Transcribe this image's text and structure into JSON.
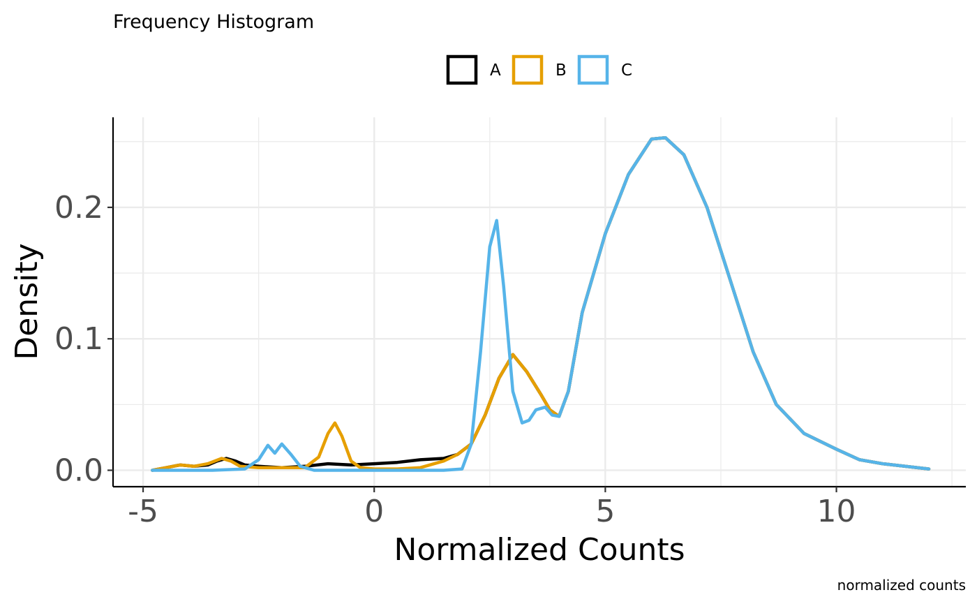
{
  "chart_data": {
    "type": "line",
    "title": "Frequency Histogram",
    "xlabel": "Normalized Counts",
    "ylabel": "Density",
    "caption": "normalized counts",
    "xlim": [
      -5.65,
      12.8
    ],
    "ylim": [
      -0.0125,
      0.2685
    ],
    "x_ticks": [
      -5,
      0,
      5,
      10
    ],
    "x_tick_labels": [
      "-5",
      "0",
      "5",
      "10"
    ],
    "y_ticks": [
      0.0,
      0.1,
      0.2
    ],
    "y_tick_labels": [
      "0.0",
      "0.1",
      "0.2"
    ],
    "x_minor_grid": [
      -2.5,
      2.5,
      7.5,
      12.5
    ],
    "y_minor_grid": [
      0.05,
      0.15,
      0.25
    ],
    "grid": true,
    "legend_position": "top",
    "series": [
      {
        "name": "A",
        "color": "#000000",
        "points": [
          [
            -4.8,
            0.0
          ],
          [
            -4.5,
            0.002
          ],
          [
            -4.2,
            0.004
          ],
          [
            -3.9,
            0.003
          ],
          [
            -3.6,
            0.004
          ],
          [
            -3.4,
            0.007
          ],
          [
            -3.2,
            0.009
          ],
          [
            -3.0,
            0.007
          ],
          [
            -2.8,
            0.004
          ],
          [
            -2.5,
            0.003
          ],
          [
            -2.0,
            0.002
          ],
          [
            -1.5,
            0.003
          ],
          [
            -1.0,
            0.005
          ],
          [
            -0.5,
            0.004
          ],
          [
            0.0,
            0.005
          ],
          [
            0.5,
            0.006
          ],
          [
            1.0,
            0.008
          ],
          [
            1.5,
            0.009
          ],
          [
            1.8,
            0.012
          ],
          [
            2.1,
            0.02
          ],
          [
            2.4,
            0.042
          ],
          [
            2.7,
            0.07
          ],
          [
            3.0,
            0.088
          ],
          [
            3.3,
            0.075
          ],
          [
            3.6,
            0.058
          ],
          [
            3.8,
            0.046
          ],
          [
            4.0,
            0.041
          ],
          [
            4.2,
            0.06
          ],
          [
            4.5,
            0.12
          ],
          [
            5.0,
            0.18
          ],
          [
            5.5,
            0.225
          ],
          [
            6.0,
            0.252
          ],
          [
            6.3,
            0.253
          ],
          [
            6.7,
            0.24
          ],
          [
            7.2,
            0.2
          ],
          [
            7.7,
            0.145
          ],
          [
            8.2,
            0.09
          ],
          [
            8.7,
            0.05
          ],
          [
            9.3,
            0.028
          ],
          [
            10.0,
            0.016
          ],
          [
            10.5,
            0.008
          ],
          [
            11.0,
            0.005
          ],
          [
            12.0,
            0.001
          ]
        ]
      },
      {
        "name": "B",
        "color": "#E69F00",
        "points": [
          [
            -4.8,
            0.0
          ],
          [
            -4.5,
            0.002
          ],
          [
            -4.2,
            0.004
          ],
          [
            -3.9,
            0.003
          ],
          [
            -3.6,
            0.005
          ],
          [
            -3.3,
            0.009
          ],
          [
            -3.1,
            0.007
          ],
          [
            -2.9,
            0.003
          ],
          [
            -2.5,
            0.002
          ],
          [
            -2.0,
            0.002
          ],
          [
            -1.5,
            0.002
          ],
          [
            -1.2,
            0.01
          ],
          [
            -1.0,
            0.028
          ],
          [
            -0.85,
            0.036
          ],
          [
            -0.7,
            0.026
          ],
          [
            -0.5,
            0.007
          ],
          [
            -0.3,
            0.002
          ],
          [
            0.0,
            0.001
          ],
          [
            0.5,
            0.001
          ],
          [
            1.0,
            0.002
          ],
          [
            1.5,
            0.007
          ],
          [
            1.8,
            0.012
          ],
          [
            2.1,
            0.02
          ],
          [
            2.4,
            0.042
          ],
          [
            2.7,
            0.07
          ],
          [
            3.0,
            0.088
          ],
          [
            3.3,
            0.075
          ],
          [
            3.6,
            0.058
          ],
          [
            3.8,
            0.046
          ],
          [
            4.0,
            0.041
          ],
          [
            4.2,
            0.06
          ],
          [
            4.5,
            0.12
          ],
          [
            5.0,
            0.18
          ],
          [
            5.5,
            0.225
          ],
          [
            6.0,
            0.252
          ],
          [
            6.3,
            0.253
          ],
          [
            6.7,
            0.24
          ],
          [
            7.2,
            0.2
          ],
          [
            7.7,
            0.145
          ],
          [
            8.2,
            0.09
          ],
          [
            8.7,
            0.05
          ],
          [
            9.3,
            0.028
          ],
          [
            10.0,
            0.016
          ],
          [
            10.5,
            0.008
          ],
          [
            11.0,
            0.005
          ],
          [
            12.0,
            0.001
          ]
        ]
      },
      {
        "name": "C",
        "color": "#56B4E9",
        "points": [
          [
            -4.8,
            0.0
          ],
          [
            -3.5,
            0.0
          ],
          [
            -2.8,
            0.001
          ],
          [
            -2.5,
            0.008
          ],
          [
            -2.3,
            0.019
          ],
          [
            -2.15,
            0.013
          ],
          [
            -2.0,
            0.02
          ],
          [
            -1.8,
            0.012
          ],
          [
            -1.6,
            0.003
          ],
          [
            -1.3,
            0.0
          ],
          [
            0.0,
            0.0
          ],
          [
            1.5,
            0.0
          ],
          [
            1.9,
            0.001
          ],
          [
            2.1,
            0.02
          ],
          [
            2.3,
            0.09
          ],
          [
            2.5,
            0.17
          ],
          [
            2.65,
            0.19
          ],
          [
            2.8,
            0.14
          ],
          [
            3.0,
            0.06
          ],
          [
            3.2,
            0.036
          ],
          [
            3.35,
            0.038
          ],
          [
            3.5,
            0.046
          ],
          [
            3.7,
            0.048
          ],
          [
            3.85,
            0.042
          ],
          [
            4.0,
            0.041
          ],
          [
            4.2,
            0.06
          ],
          [
            4.5,
            0.12
          ],
          [
            5.0,
            0.18
          ],
          [
            5.5,
            0.225
          ],
          [
            6.0,
            0.252
          ],
          [
            6.3,
            0.253
          ],
          [
            6.7,
            0.24
          ],
          [
            7.2,
            0.2
          ],
          [
            7.7,
            0.145
          ],
          [
            8.2,
            0.09
          ],
          [
            8.7,
            0.05
          ],
          [
            9.3,
            0.028
          ],
          [
            10.0,
            0.016
          ],
          [
            10.5,
            0.008
          ],
          [
            11.0,
            0.005
          ],
          [
            12.0,
            0.001
          ]
        ]
      }
    ]
  }
}
